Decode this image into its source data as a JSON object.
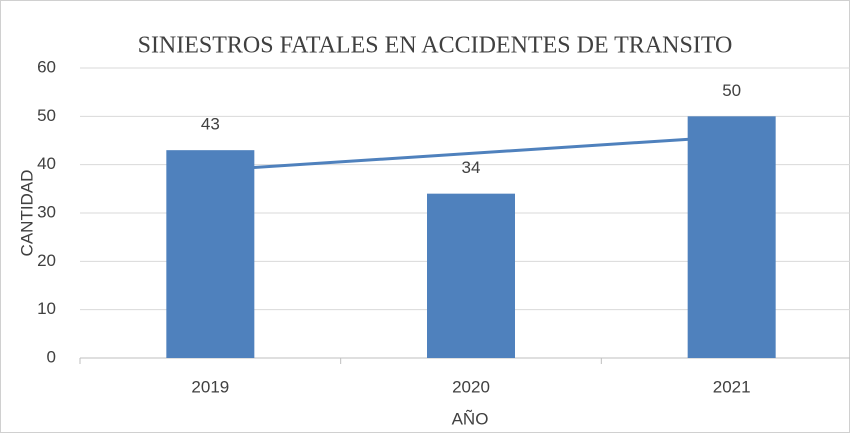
{
  "chart_data": {
    "type": "bar",
    "title": "SINIESTROS FATALES EN ACCIDENTES DE TRANSITO",
    "xlabel": "AÑO",
    "ylabel": "CANTIDAD",
    "categories": [
      "2019",
      "2020",
      "2021"
    ],
    "values": [
      43,
      34,
      50
    ],
    "color": "#4f81bd",
    "trendline": true,
    "trendline_color": "#4f81bd",
    "ylim": [
      0,
      60
    ],
    "yticks": [
      0,
      10,
      20,
      30,
      40,
      50,
      60
    ],
    "grid": true
  }
}
